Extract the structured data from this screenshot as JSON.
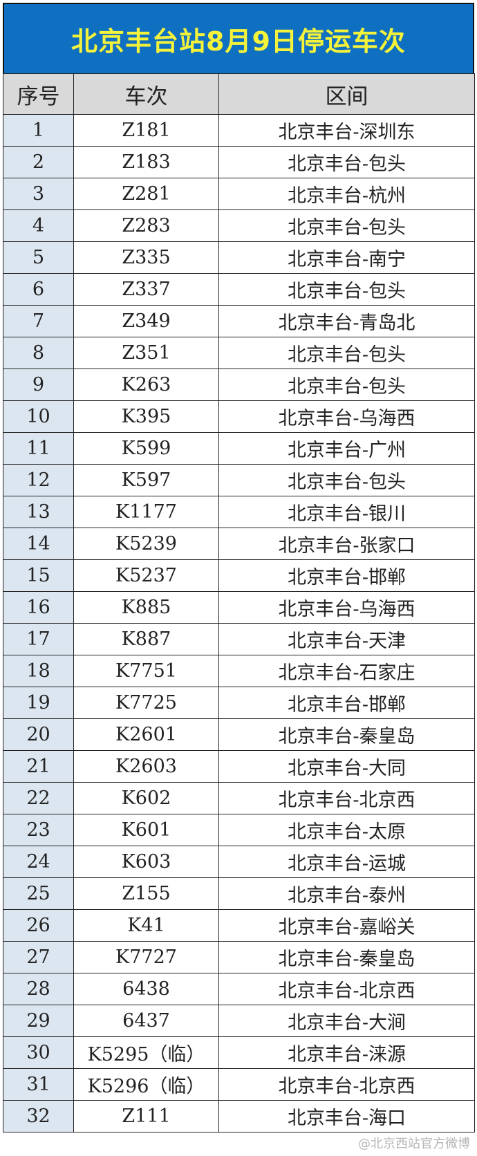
{
  "title": "北京丰台站8月9日停运车次",
  "headers": [
    "序号",
    "车次",
    "区间"
  ],
  "rows": [
    [
      "1",
      "Z181",
      "北京丰台-深圳东"
    ],
    [
      "2",
      "Z183",
      "北京丰台-包头"
    ],
    [
      "3",
      "Z281",
      "北京丰台-杭州"
    ],
    [
      "4",
      "Z283",
      "北京丰台-包头"
    ],
    [
      "5",
      "Z335",
      "北京丰台-南宁"
    ],
    [
      "6",
      "Z337",
      "北京丰台-包头"
    ],
    [
      "7",
      "Z349",
      "北京丰台-青岛北"
    ],
    [
      "8",
      "Z351",
      "北京丰台-包头"
    ],
    [
      "9",
      "K263",
      "北京丰台-包头"
    ],
    [
      "10",
      "K395",
      "北京丰台-乌海西"
    ],
    [
      "11",
      "K599",
      "北京丰台-广州"
    ],
    [
      "12",
      "K597",
      "北京丰台-包头"
    ],
    [
      "13",
      "K1177",
      "北京丰台-银川"
    ],
    [
      "14",
      "K5239",
      "北京丰台-张家口"
    ],
    [
      "15",
      "K5237",
      "北京丰台-邯郸"
    ],
    [
      "16",
      "K885",
      "北京丰台-乌海西"
    ],
    [
      "17",
      "K887",
      "北京丰台-天津"
    ],
    [
      "18",
      "K7751",
      "北京丰台-石家庄"
    ],
    [
      "19",
      "K7725",
      "北京丰台-邯郸"
    ],
    [
      "20",
      "K2601",
      "北京丰台-秦皇岛"
    ],
    [
      "21",
      "K2603",
      "北京丰台-大同"
    ],
    [
      "22",
      "K602",
      "北京丰台-北京西"
    ],
    [
      "23",
      "K601",
      "北京丰台-太原"
    ],
    [
      "24",
      "K603",
      "北京丰台-运城"
    ],
    [
      "25",
      "Z155",
      "北京丰台-泰州"
    ],
    [
      "26",
      "K41",
      "北京丰台-嘉峪关"
    ],
    [
      "27",
      "K7727",
      "北京丰台-秦皇岛"
    ],
    [
      "28",
      "6438",
      "北京丰台-北京西"
    ],
    [
      "29",
      "6437",
      "北京丰台-大涧"
    ],
    [
      "30",
      "K5295（临）",
      "北京丰台-涞源"
    ],
    [
      "31",
      "K5296（临）",
      "北京丰台-北京西"
    ],
    [
      "32",
      "Z111",
      "北京丰台-海口"
    ]
  ],
  "watermark": "@北京西站官方微博",
  "colors": {
    "title_bg": "#0f6fc0",
    "title_text": "#f4f23a",
    "header_bg": "#d9d9d9",
    "index_bg": "#dce6f1"
  }
}
